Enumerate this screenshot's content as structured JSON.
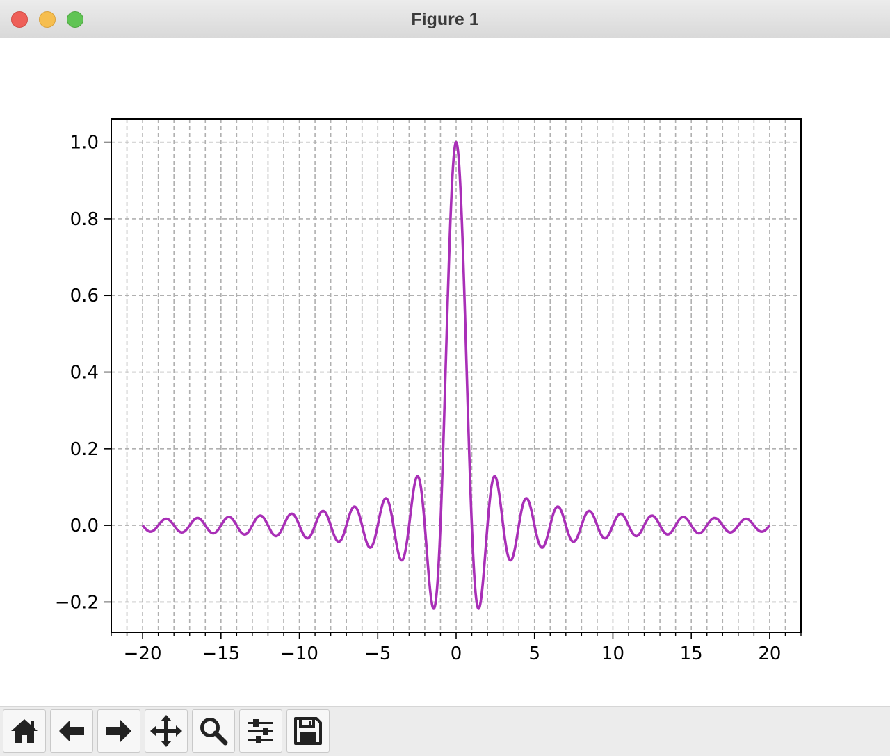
{
  "window": {
    "title": "Figure 1"
  },
  "toolbar": {
    "buttons": [
      {
        "name": "home-button",
        "icon": "home-icon"
      },
      {
        "name": "back-button",
        "icon": "arrow-left-icon"
      },
      {
        "name": "forward-button",
        "icon": "arrow-right-icon"
      },
      {
        "name": "pan-button",
        "icon": "move-icon"
      },
      {
        "name": "zoom-button",
        "icon": "magnifier-icon"
      },
      {
        "name": "configure-subplots-button",
        "icon": "sliders-icon"
      },
      {
        "name": "save-button",
        "icon": "floppy-disk-icon"
      }
    ]
  },
  "chart_data": {
    "type": "line",
    "title": "",
    "xlabel": "",
    "ylabel": "",
    "function": "sin(pi*x)/(pi*x)",
    "x_range": [
      -20,
      20
    ],
    "xlim": [
      -22,
      22
    ],
    "ylim": [
      -0.279,
      1.061
    ],
    "xticks": [
      -20,
      -15,
      -10,
      -5,
      0,
      5,
      10,
      15,
      20
    ],
    "xtick_labels": [
      "−20",
      "−15",
      "−10",
      "−5",
      "0",
      "5",
      "10",
      "15",
      "20"
    ],
    "yticks": [
      -0.2,
      0.0,
      0.2,
      0.4,
      0.6,
      0.8,
      1.0
    ],
    "ytick_labels": [
      "−0.2",
      "0.0",
      "0.2",
      "0.4",
      "0.6",
      "0.8",
      "1.0"
    ],
    "x_minor_step": 1,
    "grid": true,
    "grid_style": "dashed",
    "line_color": "#a92fb7",
    "series": [
      {
        "x": [
          -20,
          -18.5,
          -16.5,
          -14.5,
          -12.5,
          -10.5,
          -8.5,
          -6.5,
          -4.5,
          -2.5,
          -1.43,
          0,
          1.43,
          2.5,
          4.5,
          6.5,
          8.5,
          10.5,
          12.5,
          14.5,
          16.5,
          18.5,
          20
        ],
        "values": [
          0.0,
          0.017,
          0.019,
          0.022,
          0.025,
          0.03,
          0.037,
          0.049,
          0.071,
          0.127,
          -0.217,
          1.0,
          -0.217,
          0.127,
          0.071,
          0.049,
          0.037,
          0.03,
          0.025,
          0.022,
          0.019,
          0.017,
          0.0
        ]
      }
    ]
  }
}
